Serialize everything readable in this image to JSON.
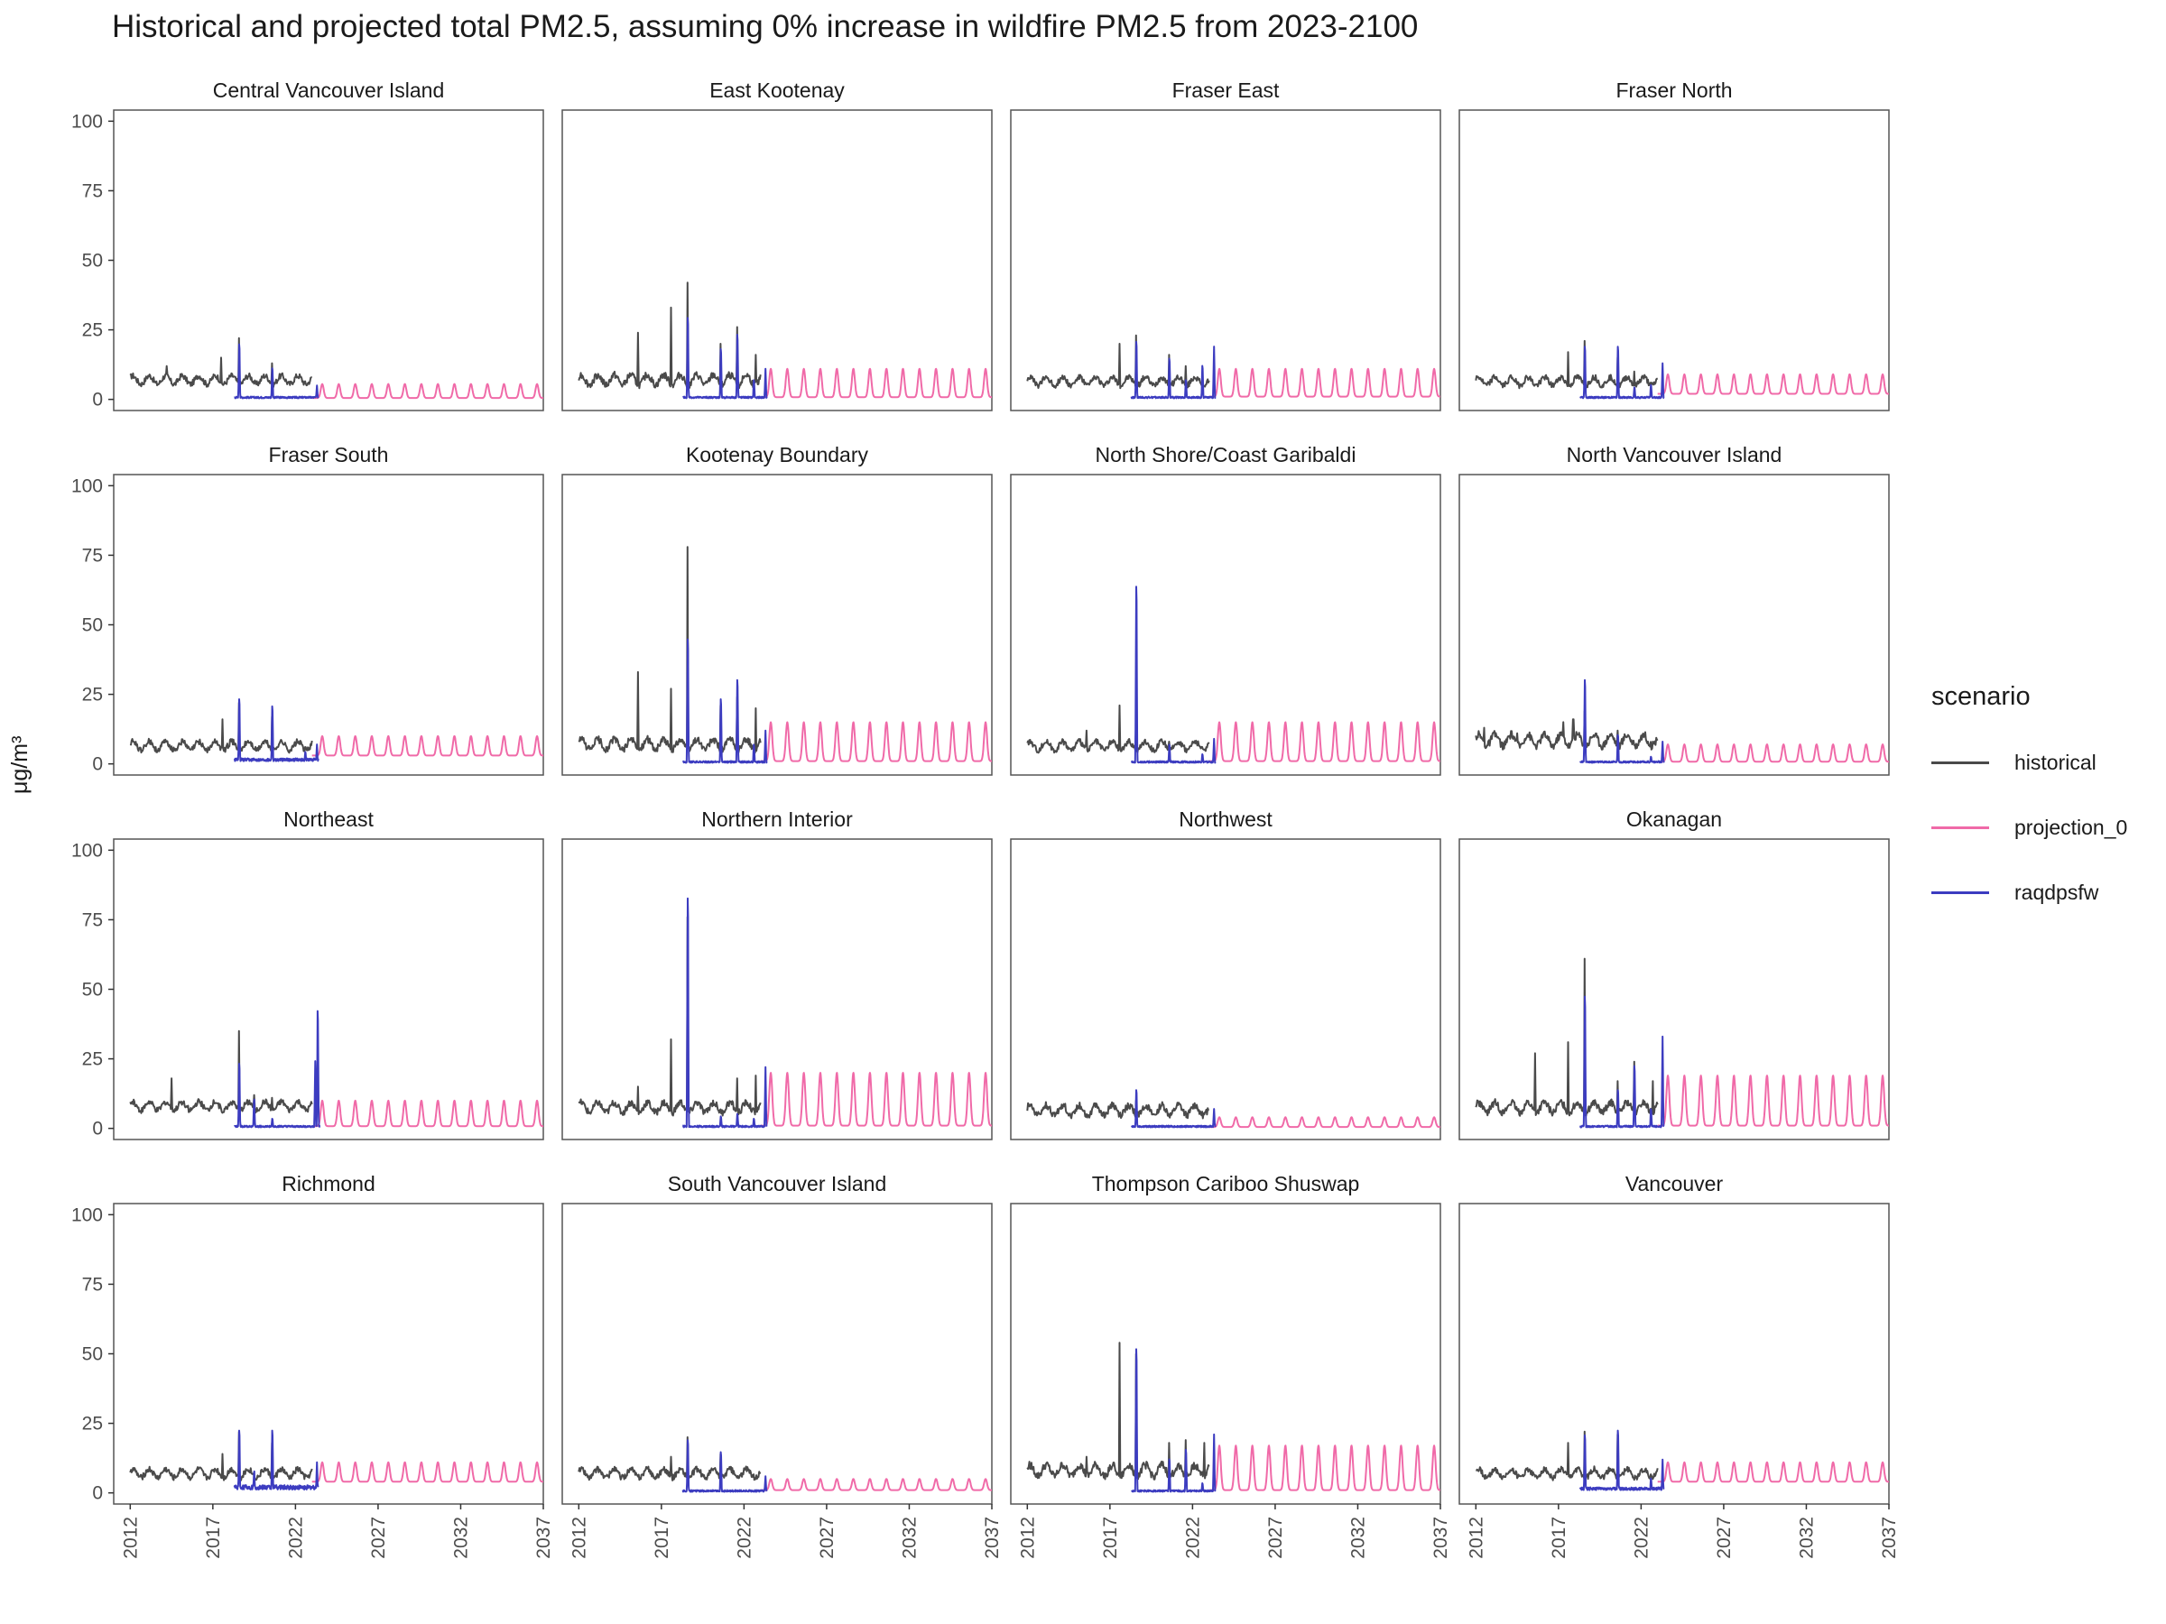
{
  "chart_data": {
    "type": "line",
    "title": "Historical and projected total PM2.5, assuming 0% increase in wildfire PM2.5 from 2023-2100",
    "xlabel": "",
    "ylabel": "μg/m³",
    "xlim": [
      2011,
      2037
    ],
    "ylim": [
      -4,
      104
    ],
    "x_ticks": [
      "2012",
      "2017",
      "2022",
      "2027",
      "2032",
      "2037"
    ],
    "y_ticks": [
      "0",
      "25",
      "50",
      "75",
      "100"
    ],
    "grid": false,
    "legend": {
      "title": "scenario",
      "placement": "right",
      "items": [
        {
          "label": "historical",
          "color": "#4a4a4a"
        },
        {
          "label": "projection_0",
          "color": "#f06aa8"
        },
        {
          "label": "raqdpsfw",
          "color": "#3c3cc0"
        }
      ]
    },
    "series_colors": {
      "historical": "#4a4a4a",
      "projection_0": "#f06aa8",
      "raqdpsfw": "#3c3cc0"
    },
    "panels": [
      {
        "name": "Central Vancouver Island",
        "historical": {
          "range": [
            2012,
            2023
          ],
          "base": 7,
          "amp": 1.5,
          "spikes": [
            [
              2014.2,
              12
            ],
            [
              2017.5,
              15
            ],
            [
              2018.6,
              22
            ],
            [
              2020.6,
              13
            ]
          ]
        },
        "raqdpsfw": {
          "range": [
            2018.3,
            2023.4
          ],
          "base": 0.7,
          "amp": 0.3,
          "spikes": [
            [
              2018.6,
              23
            ],
            [
              2020.6,
              13
            ],
            [
              2023.3,
              5
            ]
          ]
        },
        "projection_0": {
          "range": [
            2023,
            2037
          ],
          "peak": 5.5,
          "trough": 0.5
        }
      },
      {
        "name": "East Kootenay",
        "historical": {
          "range": [
            2012,
            2023
          ],
          "base": 7,
          "amp": 1.8,
          "spikes": [
            [
              2015.6,
              24
            ],
            [
              2017.6,
              33
            ],
            [
              2018.6,
              42
            ],
            [
              2020.6,
              20
            ],
            [
              2021.6,
              26
            ],
            [
              2022.7,
              16
            ]
          ]
        },
        "raqdpsfw": {
          "range": [
            2018.3,
            2023.4
          ],
          "base": 0.7,
          "amp": 0.3,
          "spikes": [
            [
              2018.6,
              34
            ],
            [
              2020.6,
              21
            ],
            [
              2021.6,
              27
            ],
            [
              2022.6,
              8
            ],
            [
              2023.3,
              11
            ]
          ]
        },
        "projection_0": {
          "range": [
            2023,
            2037
          ],
          "peak": 11,
          "trough": 0.8
        }
      },
      {
        "name": "Fraser East",
        "historical": {
          "range": [
            2012,
            2023
          ],
          "base": 6.5,
          "amp": 1.5,
          "spikes": [
            [
              2017.6,
              20
            ],
            [
              2018.6,
              23
            ],
            [
              2020.6,
              16
            ],
            [
              2021.6,
              12
            ]
          ]
        },
        "raqdpsfw": {
          "range": [
            2018.3,
            2023.4
          ],
          "base": 0.7,
          "amp": 0.3,
          "spikes": [
            [
              2018.6,
              24
            ],
            [
              2020.6,
              17
            ],
            [
              2021.6,
              8
            ],
            [
              2022.6,
              14
            ],
            [
              2023.3,
              19
            ]
          ]
        },
        "projection_0": {
          "range": [
            2023,
            2037
          ],
          "peak": 11,
          "trough": 1
        }
      },
      {
        "name": "Fraser North",
        "historical": {
          "range": [
            2012,
            2023
          ],
          "base": 6.5,
          "amp": 1.5,
          "spikes": [
            [
              2017.6,
              17
            ],
            [
              2018.6,
              21
            ],
            [
              2020.6,
              15
            ],
            [
              2021.6,
              10
            ]
          ]
        },
        "raqdpsfw": {
          "range": [
            2018.3,
            2023.4
          ],
          "base": 0.7,
          "amp": 0.3,
          "spikes": [
            [
              2018.6,
              22
            ],
            [
              2020.6,
              22
            ],
            [
              2021.6,
              5
            ],
            [
              2022.6,
              6
            ],
            [
              2023.3,
              13
            ]
          ]
        },
        "projection_0": {
          "range": [
            2023,
            2037
          ],
          "peak": 9,
          "trough": 2
        }
      },
      {
        "name": "Fraser South",
        "historical": {
          "range": [
            2012,
            2023
          ],
          "base": 6.5,
          "amp": 1.5,
          "spikes": [
            [
              2017.6,
              16
            ],
            [
              2018.6,
              22
            ],
            [
              2020.6,
              17
            ]
          ]
        },
        "raqdpsfw": {
          "range": [
            2018.3,
            2023.4
          ],
          "base": 1.5,
          "amp": 0.5,
          "spikes": [
            [
              2018.6,
              27
            ],
            [
              2020.6,
              24
            ],
            [
              2022.6,
              5
            ],
            [
              2023.3,
              7
            ]
          ]
        },
        "projection_0": {
          "range": [
            2023,
            2037
          ],
          "peak": 10,
          "trough": 3
        }
      },
      {
        "name": "Kootenay Boundary",
        "historical": {
          "range": [
            2012,
            2023
          ],
          "base": 7,
          "amp": 1.8,
          "spikes": [
            [
              2015.6,
              33
            ],
            [
              2017.6,
              27
            ],
            [
              2018.6,
              78
            ],
            [
              2020.6,
              21
            ],
            [
              2021.6,
              24
            ],
            [
              2022.7,
              20
            ]
          ]
        },
        "raqdpsfw": {
          "range": [
            2018.3,
            2023.4
          ],
          "base": 0.7,
          "amp": 0.3,
          "spikes": [
            [
              2018.6,
              52
            ],
            [
              2020.6,
              27
            ],
            [
              2021.6,
              35
            ],
            [
              2022.6,
              8
            ],
            [
              2023.3,
              12
            ]
          ]
        },
        "projection_0": {
          "range": [
            2023,
            2037
          ],
          "peak": 15,
          "trough": 1
        }
      },
      {
        "name": "North Shore/Coast Garibaldi",
        "historical": {
          "range": [
            2012,
            2023
          ],
          "base": 6.5,
          "amp": 1.5,
          "spikes": [
            [
              2015.6,
              12
            ],
            [
              2017.6,
              21
            ],
            [
              2018.6,
              15
            ],
            [
              2020.6,
              8
            ]
          ]
        },
        "raqdpsfw": {
          "range": [
            2018.3,
            2023.4
          ],
          "base": 0.7,
          "amp": 0.3,
          "spikes": [
            [
              2018.6,
              74
            ],
            [
              2020.6,
              8
            ],
            [
              2022.6,
              4
            ],
            [
              2023.3,
              9
            ]
          ]
        },
        "projection_0": {
          "range": [
            2023,
            2037
          ],
          "peak": 15,
          "trough": 1
        }
      },
      {
        "name": "North Vancouver Island",
        "historical": {
          "range": [
            2012,
            2023
          ],
          "base": 8.5,
          "amp": 2,
          "spikes": [
            [
              2012.5,
              13
            ],
            [
              2014.5,
              11
            ],
            [
              2017.3,
              15
            ],
            [
              2017.9,
              16
            ],
            [
              2018.6,
              19
            ],
            [
              2020.6,
              12
            ]
          ]
        },
        "raqdpsfw": {
          "range": [
            2018.3,
            2023.4
          ],
          "base": 0.7,
          "amp": 0.3,
          "spikes": [
            [
              2018.6,
              35
            ],
            [
              2020.6,
              12
            ],
            [
              2022.6,
              3
            ],
            [
              2023.3,
              8
            ]
          ]
        },
        "projection_0": {
          "range": [
            2023,
            2037
          ],
          "peak": 7,
          "trough": 0.8
        }
      },
      {
        "name": "Northeast",
        "historical": {
          "range": [
            2012,
            2023
          ],
          "base": 8,
          "amp": 1.5,
          "spikes": [
            [
              2014.5,
              18
            ],
            [
              2018.6,
              35
            ],
            [
              2019.5,
              12
            ],
            [
              2020.6,
              11
            ]
          ]
        },
        "raqdpsfw": {
          "range": [
            2018.3,
            2023.5
          ],
          "base": 0.7,
          "amp": 0.3,
          "spikes": [
            [
              2018.6,
              27
            ],
            [
              2019.5,
              12
            ],
            [
              2020.6,
              4
            ],
            [
              2023.2,
              26
            ],
            [
              2023.35,
              49
            ]
          ]
        },
        "projection_0": {
          "range": [
            2023,
            2037
          ],
          "peak": 10,
          "trough": 0.8
        }
      },
      {
        "name": "Northern Interior",
        "historical": {
          "range": [
            2012,
            2023
          ],
          "base": 7.5,
          "amp": 1.8,
          "spikes": [
            [
              2015.6,
              15
            ],
            [
              2017.6,
              32
            ],
            [
              2018.6,
              76
            ],
            [
              2021.6,
              18
            ],
            [
              2022.7,
              19
            ]
          ]
        },
        "raqdpsfw": {
          "range": [
            2018.3,
            2023.4
          ],
          "base": 0.7,
          "amp": 0.3,
          "spikes": [
            [
              2018.6,
              96
            ],
            [
              2020.6,
              5
            ],
            [
              2021.6,
              6
            ],
            [
              2022.6,
              4
            ],
            [
              2023.3,
              22
            ]
          ]
        },
        "projection_0": {
          "range": [
            2023,
            2037
          ],
          "peak": 20,
          "trough": 1
        }
      },
      {
        "name": "Northwest",
        "historical": {
          "range": [
            2012,
            2023
          ],
          "base": 6.5,
          "amp": 1.8,
          "spikes": [
            [
              2018.6,
              10
            ]
          ]
        },
        "raqdpsfw": {
          "range": [
            2018.3,
            2023.4
          ],
          "base": 0.7,
          "amp": 0.3,
          "spikes": [
            [
              2018.6,
              16
            ],
            [
              2023.3,
              7
            ]
          ]
        },
        "projection_0": {
          "range": [
            2023,
            2037
          ],
          "peak": 4,
          "trough": 0.5
        }
      },
      {
        "name": "Okanagan",
        "historical": {
          "range": [
            2012,
            2023
          ],
          "base": 7.5,
          "amp": 1.8,
          "spikes": [
            [
              2015.6,
              27
            ],
            [
              2017.6,
              31
            ],
            [
              2018.6,
              61
            ],
            [
              2020.6,
              17
            ],
            [
              2021.6,
              24
            ],
            [
              2022.7,
              17
            ]
          ]
        },
        "raqdpsfw": {
          "range": [
            2018.3,
            2023.4
          ],
          "base": 0.7,
          "amp": 0.3,
          "spikes": [
            [
              2018.6,
              55
            ],
            [
              2020.6,
              16
            ],
            [
              2021.6,
              26
            ],
            [
              2022.6,
              8
            ],
            [
              2023.3,
              33
            ]
          ]
        },
        "projection_0": {
          "range": [
            2023,
            2037
          ],
          "peak": 19,
          "trough": 1
        }
      },
      {
        "name": "Richmond",
        "historical": {
          "range": [
            2012,
            2023
          ],
          "base": 7,
          "amp": 1.5,
          "spikes": [
            [
              2017.6,
              14
            ],
            [
              2018.6,
              22
            ],
            [
              2020.6,
              18
            ]
          ]
        },
        "raqdpsfw": {
          "range": [
            2018.3,
            2023.4
          ],
          "base": 2,
          "amp": 0.8,
          "spikes": [
            [
              2018.6,
              26
            ],
            [
              2019.5,
              9
            ],
            [
              2020.6,
              26
            ],
            [
              2023.3,
              11
            ]
          ]
        },
        "projection_0": {
          "range": [
            2023,
            2037
          ],
          "peak": 11,
          "trough": 4
        }
      },
      {
        "name": "South Vancouver Island",
        "historical": {
          "range": [
            2012,
            2023
          ],
          "base": 7,
          "amp": 1.5,
          "spikes": [
            [
              2017.6,
              13
            ],
            [
              2018.6,
              20
            ],
            [
              2020.6,
              14
            ]
          ]
        },
        "raqdpsfw": {
          "range": [
            2018.3,
            2023.4
          ],
          "base": 0.7,
          "amp": 0.3,
          "spikes": [
            [
              2018.6,
              22
            ],
            [
              2020.6,
              17
            ],
            [
              2023.3,
              6
            ]
          ]
        },
        "projection_0": {
          "range": [
            2023,
            2037
          ],
          "peak": 5,
          "trough": 1
        }
      },
      {
        "name": "Thompson Cariboo Shuswap",
        "historical": {
          "range": [
            2012,
            2023
          ],
          "base": 8,
          "amp": 2,
          "spikes": [
            [
              2015.6,
              13
            ],
            [
              2017.6,
              54
            ],
            [
              2018.6,
              50
            ],
            [
              2020.6,
              18
            ],
            [
              2021.6,
              19
            ],
            [
              2022.7,
              18
            ]
          ]
        },
        "raqdpsfw": {
          "range": [
            2018.3,
            2023.4
          ],
          "base": 0.7,
          "amp": 0.3,
          "spikes": [
            [
              2018.6,
              60
            ],
            [
              2020.6,
              14
            ],
            [
              2021.6,
              18
            ],
            [
              2022.6,
              4
            ],
            [
              2023.3,
              21
            ]
          ]
        },
        "projection_0": {
          "range": [
            2023,
            2037
          ],
          "peak": 17,
          "trough": 1
        }
      },
      {
        "name": "Vancouver",
        "historical": {
          "range": [
            2012,
            2023
          ],
          "base": 7,
          "amp": 1.5,
          "spikes": [
            [
              2017.6,
              18
            ],
            [
              2018.6,
              22
            ],
            [
              2020.6,
              21
            ]
          ]
        },
        "raqdpsfw": {
          "range": [
            2018.3,
            2023.4
          ],
          "base": 1.5,
          "amp": 0.5,
          "spikes": [
            [
              2018.6,
              24
            ],
            [
              2020.6,
              26
            ],
            [
              2022.6,
              6
            ],
            [
              2023.3,
              12
            ]
          ]
        },
        "projection_0": {
          "range": [
            2023,
            2037
          ],
          "peak": 11,
          "trough": 4
        }
      }
    ]
  }
}
